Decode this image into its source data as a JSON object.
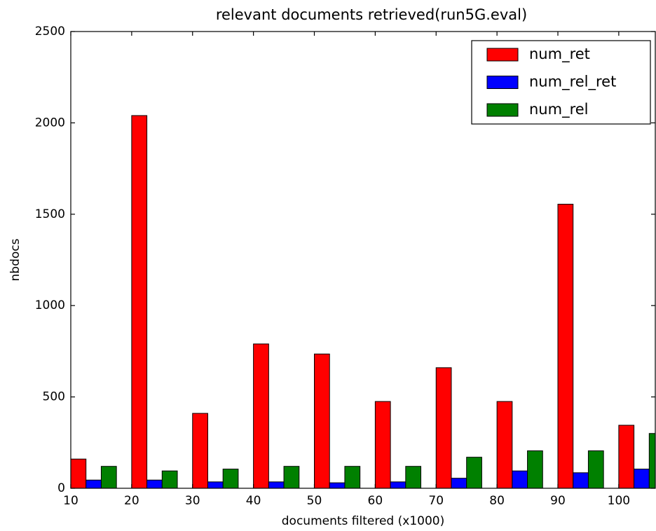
{
  "chart_data": {
    "type": "bar",
    "title": "relevant documents retrieved(run5G.eval)",
    "xlabel": "documents filtered (x1000)",
    "ylabel": "nbdocs",
    "x": [
      10,
      20,
      30,
      40,
      50,
      60,
      70,
      80,
      90,
      100
    ],
    "series": [
      {
        "name": "num_ret",
        "color": "#ff0000",
        "values": [
          160,
          2040,
          410,
          790,
          735,
          475,
          660,
          475,
          1555,
          345
        ]
      },
      {
        "name": "num_rel_ret",
        "color": "#0000ff",
        "values": [
          45,
          45,
          35,
          35,
          30,
          35,
          55,
          95,
          85,
          105
        ]
      },
      {
        "name": "num_rel",
        "color": "#008000",
        "values": [
          120,
          95,
          105,
          120,
          120,
          120,
          170,
          205,
          205,
          300
        ]
      }
    ],
    "xlim": [
      10,
      106
    ],
    "xticks": [
      10,
      20,
      30,
      40,
      50,
      60,
      70,
      80,
      90,
      100
    ],
    "ylim": [
      0,
      2500
    ],
    "yticks": [
      0,
      500,
      1000,
      1500,
      2000,
      2500
    ],
    "legend": "upper right"
  }
}
